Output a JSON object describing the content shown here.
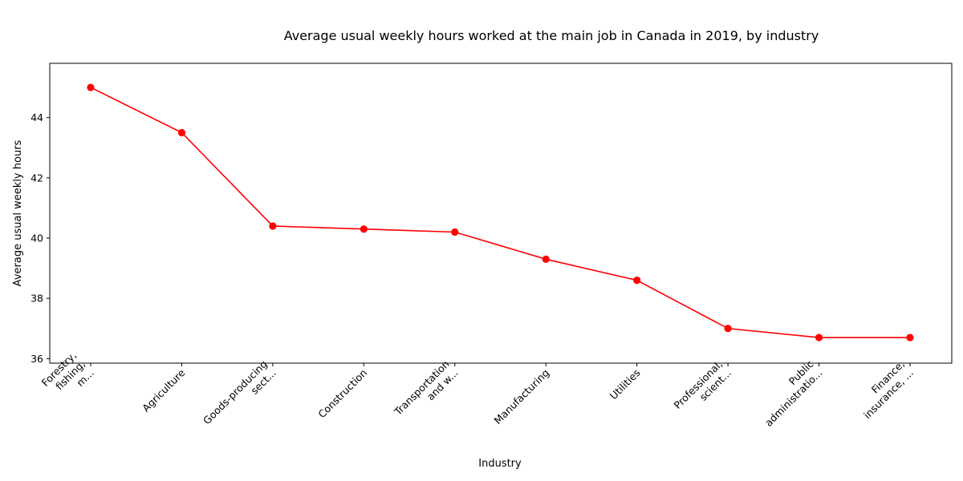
{
  "chart_data": {
    "type": "line",
    "title": "Average usual weekly hours worked at the main job in Canada in 2019, by industry",
    "xlabel": "Industry",
    "ylabel": "Average usual weekly hours",
    "categories": [
      [
        "Forestry,",
        "fishing,",
        "m..."
      ],
      [
        "Agriculture"
      ],
      [
        "Goods-producing",
        "sect..."
      ],
      [
        "Construction"
      ],
      [
        "Transportation",
        "and w..."
      ],
      [
        "Manufacturing"
      ],
      [
        "Utilities"
      ],
      [
        "Professional,",
        "scient..."
      ],
      [
        "Public",
        "administratio..."
      ],
      [
        "Finance,",
        "insurance, ..."
      ]
    ],
    "values": [
      45.0,
      43.5,
      40.4,
      40.3,
      40.2,
      39.3,
      38.6,
      37.0,
      36.7,
      36.7
    ],
    "yticks": [
      36,
      38,
      40,
      42,
      44
    ],
    "ylim": [
      35.85,
      45.8
    ],
    "line_color": "#ff0000",
    "marker_color": "#ff0000",
    "grid": false,
    "legend": "none"
  }
}
